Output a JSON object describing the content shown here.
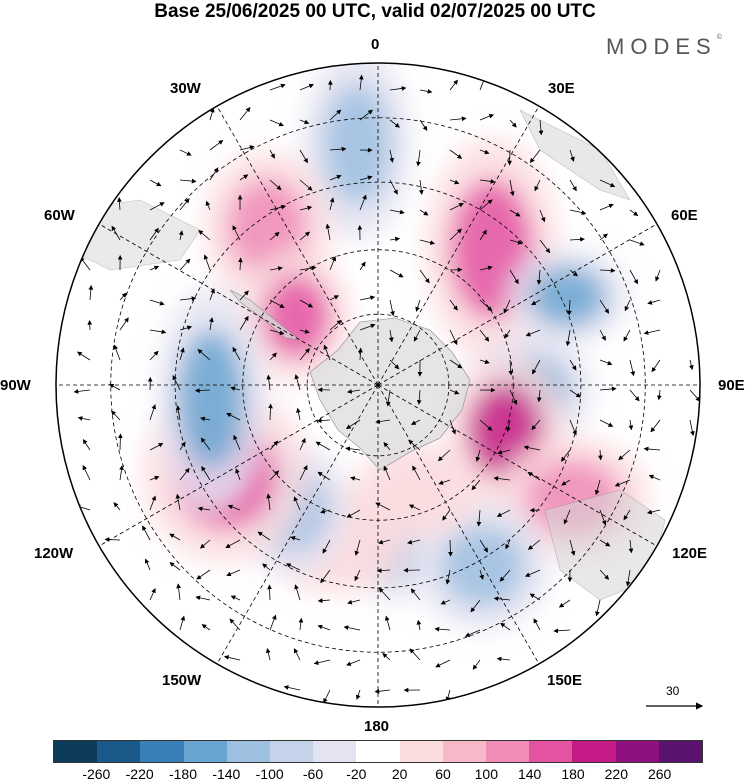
{
  "title": "Base 25/06/2025 00 UTC, valid 02/07/2025 00 UTC",
  "brand": "MODES",
  "brand_mark": "©",
  "longitude_labels": {
    "lon_0": "0",
    "lon_30e": "30E",
    "lon_60e": "60E",
    "lon_90e": "90E",
    "lon_120e": "120E",
    "lon_150e": "150E",
    "lon_180": "180",
    "lon_150w": "150W",
    "lon_120w": "120W",
    "lon_90w": "90W",
    "lon_60w": "60W",
    "lon_30w": "30W"
  },
  "reference_vector": "30",
  "colorbar": {
    "colors": [
      "#0c3b5c",
      "#1a5a8a",
      "#3a80b8",
      "#6aa4d0",
      "#9dbfe0",
      "#c5d3ea",
      "#e4e3f1",
      "#ffffff",
      "#fbdde0",
      "#f7b9c8",
      "#f08cb8",
      "#e454a3",
      "#c41b86",
      "#8e117e",
      "#5a1470"
    ],
    "tick_labels": [
      "-260",
      "-220",
      "-180",
      "-140",
      "-100",
      "-60",
      "-20",
      "20",
      "60",
      "100",
      "140",
      "180",
      "220",
      "260"
    ]
  },
  "chart_data": {
    "type": "heatmap",
    "projection": "south polar stereographic",
    "variable_range": [
      -260,
      260
    ],
    "contour_levels": [
      -260,
      -220,
      -180,
      -140,
      -100,
      -60,
      -20,
      20,
      60,
      100,
      140,
      180,
      220,
      260
    ],
    "anomaly_centers": [
      {
        "lon": -5,
        "value": -120
      },
      {
        "lon": -35,
        "value": 130
      },
      {
        "lon": -50,
        "value": 150
      },
      {
        "lon": 40,
        "value": 150
      },
      {
        "lon": 65,
        "value": -140
      },
      {
        "lon": 92,
        "value": -140
      },
      {
        "lon": 110,
        "value": 220
      },
      {
        "lon": 120,
        "value": 140
      },
      {
        "lon": 150,
        "value": -130
      },
      {
        "lon": 175,
        "value": -100
      },
      {
        "lon": 160,
        "value": 60
      },
      {
        "lon": -165,
        "value": 60
      },
      {
        "lon": -145,
        "value": -120
      },
      {
        "lon": -120,
        "value": 180
      },
      {
        "lon": -95,
        "value": -160
      }
    ]
  }
}
